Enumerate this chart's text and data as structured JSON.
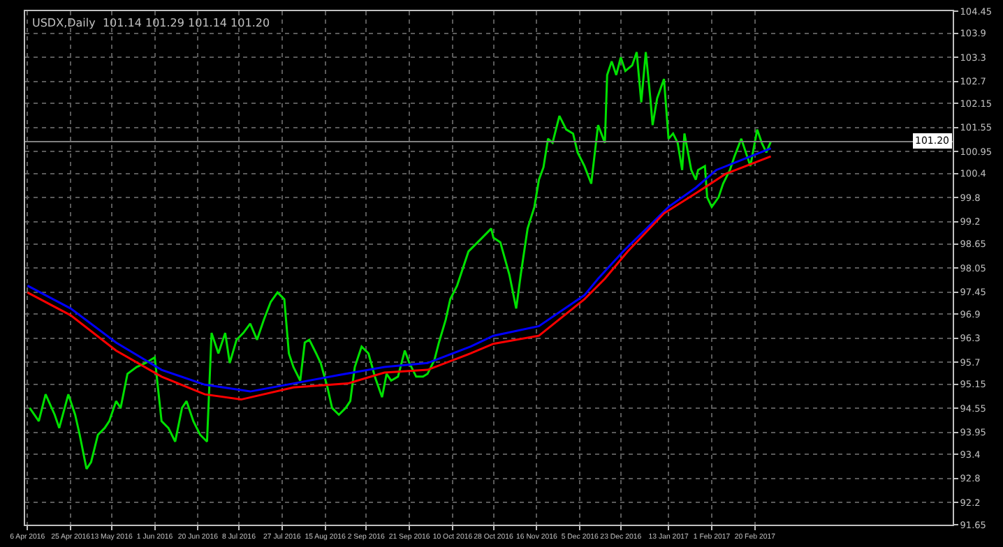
{
  "chart_data": {
    "type": "line",
    "title": "USDX,Daily  101.14 101.29 101.14 101.20",
    "xlim": [
      "2016-04-05",
      "2017-05-18"
    ],
    "ylim": [
      91.65,
      104.45
    ],
    "xticks": [
      {
        "value": "2016-04-06",
        "label": "6 Apr 2016"
      },
      {
        "value": "2016-04-25",
        "label": "25 Apr 2016"
      },
      {
        "value": "2016-05-13",
        "label": "13 May 2016"
      },
      {
        "value": "2016-06-01",
        "label": "1 Jun 2016"
      },
      {
        "value": "2016-06-20",
        "label": "20 Jun 2016"
      },
      {
        "value": "2016-07-08",
        "label": "8 Jul 2016"
      },
      {
        "value": "2016-07-27",
        "label": "27 Jul 2016"
      },
      {
        "value": "2016-08-15",
        "label": "15 Aug 2016"
      },
      {
        "value": "2016-09-02",
        "label": "2 Sep 2016"
      },
      {
        "value": "2016-09-21",
        "label": "21 Sep 2016"
      },
      {
        "value": "2016-10-10",
        "label": "10 Oct 2016"
      },
      {
        "value": "2016-10-28",
        "label": "28 Oct 2016"
      },
      {
        "value": "2016-11-16",
        "label": "16 Nov 2016"
      },
      {
        "value": "2016-12-05",
        "label": "5 Dec 2016"
      },
      {
        "value": "2016-12-23",
        "label": "23 Dec 2016"
      },
      {
        "value": "2017-01-13",
        "label": "13 Jan 2017"
      },
      {
        "value": "2017-02-01",
        "label": "1 Feb 2017"
      },
      {
        "value": "2017-02-20",
        "label": "20 Feb 2017"
      }
    ],
    "yticks": [
      91.65,
      92.2,
      92.8,
      93.4,
      93.95,
      94.55,
      95.15,
      95.7,
      96.3,
      96.9,
      97.45,
      98.05,
      98.65,
      99.2,
      99.8,
      100.4,
      100.95,
      101.55,
      102.15,
      102.7,
      103.3,
      103.9,
      104.45
    ],
    "grid": true,
    "line_style": "solid",
    "marker": "none",
    "ref_lines": [
      {
        "axis": "y",
        "value": 101.2,
        "label": "101.20",
        "color": "#808080"
      }
    ],
    "series": [
      {
        "color": "#00e000",
        "type": "line",
        "x": [
          "2016-04-07",
          "2016-04-11",
          "2016-04-14",
          "2016-04-18",
          "2016-04-20",
          "2016-04-24",
          "2016-04-27",
          "2016-04-29",
          "2016-05-02",
          "2016-05-04",
          "2016-05-07",
          "2016-05-10",
          "2016-05-12",
          "2016-05-15",
          "2016-05-17",
          "2016-05-20",
          "2016-05-24",
          "2016-05-28",
          "2016-06-01",
          "2016-06-04",
          "2016-06-07",
          "2016-06-10",
          "2016-06-13",
          "2016-06-15",
          "2016-06-18",
          "2016-06-21",
          "2016-06-24",
          "2016-06-26",
          "2016-06-29",
          "2016-07-02",
          "2016-07-04",
          "2016-07-07",
          "2016-07-10",
          "2016-07-13",
          "2016-07-16",
          "2016-07-19",
          "2016-07-22",
          "2016-07-25",
          "2016-07-28",
          "2016-07-30",
          "2016-08-01",
          "2016-08-04",
          "2016-08-06",
          "2016-08-08",
          "2016-08-11",
          "2016-08-13",
          "2016-08-16",
          "2016-08-18",
          "2016-08-21",
          "2016-08-24",
          "2016-08-26",
          "2016-08-28",
          "2016-08-31",
          "2016-09-03",
          "2016-09-06",
          "2016-09-09",
          "2016-09-11",
          "2016-09-13",
          "2016-09-16",
          "2016-09-19",
          "2016-09-21",
          "2016-09-24",
          "2016-09-27",
          "2016-09-29",
          "2016-10-02",
          "2016-10-04",
          "2016-10-07",
          "2016-10-09",
          "2016-10-12",
          "2016-10-17",
          "2016-10-23",
          "2016-10-27",
          "2016-10-28",
          "2016-10-31",
          "2016-11-04",
          "2016-11-07",
          "2016-11-09",
          "2016-11-12",
          "2016-11-15",
          "2016-11-17",
          "2016-11-19",
          "2016-11-21",
          "2016-11-23",
          "2016-11-26",
          "2016-11-29",
          "2016-12-02",
          "2016-12-04",
          "2016-12-07",
          "2016-12-10",
          "2016-12-13",
          "2016-12-16",
          "2016-12-17",
          "2016-12-19",
          "2016-12-21",
          "2016-12-23",
          "2016-12-25",
          "2016-12-28",
          "2016-12-30",
          "2017-01-01",
          "2017-01-03",
          "2017-01-05",
          "2017-01-06",
          "2017-01-08",
          "2017-01-11",
          "2017-01-13",
          "2017-01-15",
          "2017-01-17",
          "2017-01-19",
          "2017-01-20",
          "2017-01-23",
          "2017-01-25",
          "2017-01-26",
          "2017-01-29",
          "2017-01-30",
          "2017-02-01",
          "2017-02-04",
          "2017-02-06",
          "2017-02-09",
          "2017-02-11",
          "2017-02-14",
          "2017-02-16",
          "2017-02-18",
          "2017-02-21",
          "2017-02-23",
          "2017-02-25",
          "2017-02-27"
        ],
        "values": [
          94.56,
          94.23,
          94.9,
          94.39,
          94.06,
          94.9,
          94.39,
          93.89,
          93.04,
          93.21,
          93.89,
          94.06,
          94.23,
          94.73,
          94.56,
          95.41,
          95.58,
          95.68,
          95.82,
          94.23,
          94.06,
          93.72,
          94.56,
          94.73,
          94.23,
          93.89,
          93.72,
          96.43,
          95.92,
          96.43,
          95.68,
          96.26,
          96.43,
          96.66,
          96.26,
          96.76,
          97.2,
          97.44,
          97.27,
          95.92,
          95.58,
          95.24,
          96.19,
          96.26,
          95.92,
          95.68,
          95.07,
          94.56,
          94.39,
          94.56,
          94.73,
          95.58,
          96.09,
          95.92,
          95.31,
          94.83,
          95.41,
          95.24,
          95.34,
          95.99,
          95.68,
          95.34,
          95.34,
          95.41,
          95.75,
          96.19,
          96.76,
          97.27,
          97.61,
          98.46,
          98.8,
          99.03,
          98.8,
          98.69,
          97.88,
          97.04,
          97.88,
          99.03,
          99.57,
          100.25,
          100.56,
          101.27,
          101.17,
          101.84,
          101.5,
          101.4,
          100.93,
          100.59,
          100.15,
          101.61,
          101.17,
          102.86,
          103.2,
          102.86,
          103.3,
          102.96,
          103.1,
          103.43,
          102.18,
          103.43,
          102.28,
          101.61,
          102.28,
          102.76,
          101.27,
          101.4,
          101.17,
          100.49,
          101.4,
          100.49,
          100.25,
          100.49,
          100.59,
          99.81,
          99.57,
          99.81,
          100.15,
          100.49,
          100.83,
          101.27,
          100.93,
          100.59,
          101.5,
          101.17,
          100.93,
          101.2
        ]
      },
      {
        "color": "#0000ff",
        "type": "line",
        "x": [
          "2016-04-06",
          "2016-04-25",
          "2016-05-15",
          "2016-06-04",
          "2016-06-23",
          "2016-07-13",
          "2016-08-01",
          "2016-08-21",
          "2016-09-10",
          "2016-09-29",
          "2016-10-18",
          "2016-10-28",
          "2016-11-17",
          "2016-12-07",
          "2016-12-13",
          "2016-12-24",
          "2017-01-13",
          "2017-01-25",
          "2017-02-03",
          "2017-02-15",
          "2017-02-27"
        ],
        "values": [
          97.61,
          97.04,
          96.19,
          95.51,
          95.14,
          94.97,
          95.17,
          95.38,
          95.58,
          95.68,
          96.09,
          96.36,
          96.6,
          97.37,
          97.78,
          98.46,
          99.57,
          100.05,
          100.49,
          100.76,
          101.03
        ]
      },
      {
        "color": "#ff0000",
        "type": "line",
        "x": [
          "2016-04-06",
          "2016-04-25",
          "2016-05-15",
          "2016-06-04",
          "2016-06-23",
          "2016-07-09",
          "2016-08-01",
          "2016-08-25",
          "2016-09-10",
          "2016-09-29",
          "2016-10-18",
          "2016-10-28",
          "2016-11-17",
          "2016-12-07",
          "2016-12-16",
          "2016-12-26",
          "2017-01-11",
          "2017-01-25",
          "2017-02-07",
          "2017-02-27"
        ],
        "values": [
          97.44,
          96.87,
          95.99,
          95.34,
          94.9,
          94.77,
          95.07,
          95.17,
          95.44,
          95.51,
          95.92,
          96.16,
          96.36,
          97.27,
          97.78,
          98.46,
          99.41,
          99.91,
          100.39,
          100.83
        ]
      }
    ]
  }
}
